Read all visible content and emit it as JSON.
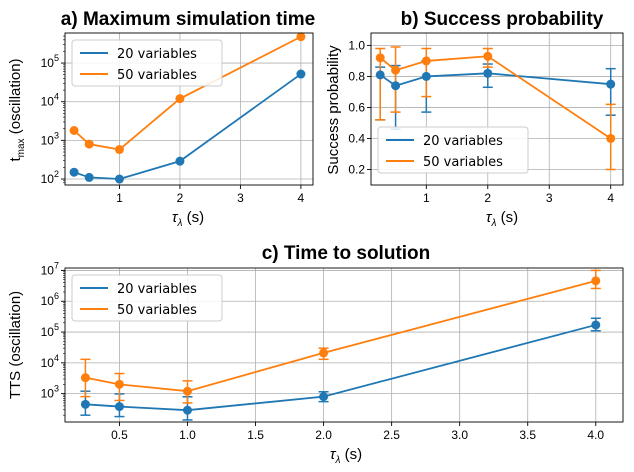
{
  "chart_data": [
    {
      "id": "a",
      "type": "line",
      "title": "a) Maximum simulation time",
      "xlabel": "τ",
      "xlabel_sub": "λ",
      "xlabel_unit": " (s)",
      "ylabel": "t",
      "ylabel_sub": "max",
      "ylabel_unit": " (oscillation)",
      "yscale": "log",
      "xlim": [
        0.1,
        4.2
      ],
      "ylim": [
        70,
        600000
      ],
      "xticks": [
        1,
        2,
        3,
        4
      ],
      "yticks": [
        2,
        3,
        4,
        5
      ],
      "legend": "top-left",
      "x": [
        0.25,
        0.5,
        1,
        2,
        4
      ],
      "series": [
        {
          "name": "20 variables",
          "color": "#1f77b4",
          "values": [
            150,
            110,
            100,
            290,
            52000
          ]
        },
        {
          "name": "50 variables",
          "color": "#ff7f0e",
          "values": [
            1800,
            800,
            580,
            12000,
            480000
          ]
        }
      ]
    },
    {
      "id": "b",
      "type": "line",
      "title": "b) Success probability",
      "xlabel": "τ",
      "xlabel_sub": "λ",
      "xlabel_unit": " (s)",
      "ylabel": "Success probability",
      "yscale": "linear",
      "xlim": [
        0.1,
        4.2
      ],
      "ylim": [
        0.1,
        1.08
      ],
      "xticks": [
        1,
        2,
        3,
        4
      ],
      "yticks": [
        0.2,
        0.4,
        0.6,
        0.8,
        1.0
      ],
      "legend": "bottom-left",
      "x": [
        0.25,
        0.5,
        1,
        2,
        4
      ],
      "series": [
        {
          "name": "20 variables",
          "color": "#1f77b4",
          "values": [
            0.81,
            0.74,
            0.8,
            0.82,
            0.75
          ],
          "err_low": [
            0.29,
            0.28,
            0.23,
            0.09,
            0.2
          ],
          "err_high": [
            0.05,
            0.13,
            0.1,
            0.06,
            0.1
          ]
        },
        {
          "name": "50 variables",
          "color": "#ff7f0e",
          "values": [
            0.92,
            0.84,
            0.9,
            0.93,
            0.4
          ],
          "err_low": [
            0.4,
            0.27,
            0.23,
            0.07,
            0.2
          ],
          "err_high": [
            0.06,
            0.15,
            0.08,
            0.05,
            0.22
          ]
        }
      ]
    },
    {
      "id": "c",
      "type": "line",
      "title": "c) Time to solution",
      "xlabel": "τ",
      "xlabel_sub": "λ",
      "xlabel_unit": " (s)",
      "ylabel": "TTS (oscillation)",
      "yscale": "log",
      "xlim": [
        0.1,
        4.2
      ],
      "ylim": [
        120,
        12000000
      ],
      "xticks": [
        0.5,
        1.0,
        1.5,
        2.0,
        2.5,
        3.0,
        3.5,
        4.0
      ],
      "yticks": [
        3,
        4,
        5,
        6,
        7
      ],
      "legend": "top-left",
      "x": [
        0.25,
        0.5,
        1,
        2,
        4
      ],
      "series": [
        {
          "name": "20 variables",
          "color": "#1f77b4",
          "values": [
            450,
            380,
            290,
            800,
            170000
          ],
          "err_low": [
            250,
            200,
            150,
            250,
            60000
          ],
          "err_high": [
            750,
            600,
            500,
            350,
            110000
          ]
        },
        {
          "name": "50 variables",
          "color": "#ff7f0e",
          "values": [
            3300,
            2000,
            1200,
            21000,
            4600000
          ],
          "err_low": [
            2500,
            1400,
            700,
            8000,
            2000000
          ],
          "err_high": [
            9700,
            2500,
            1400,
            9000,
            5400000
          ]
        }
      ]
    }
  ]
}
